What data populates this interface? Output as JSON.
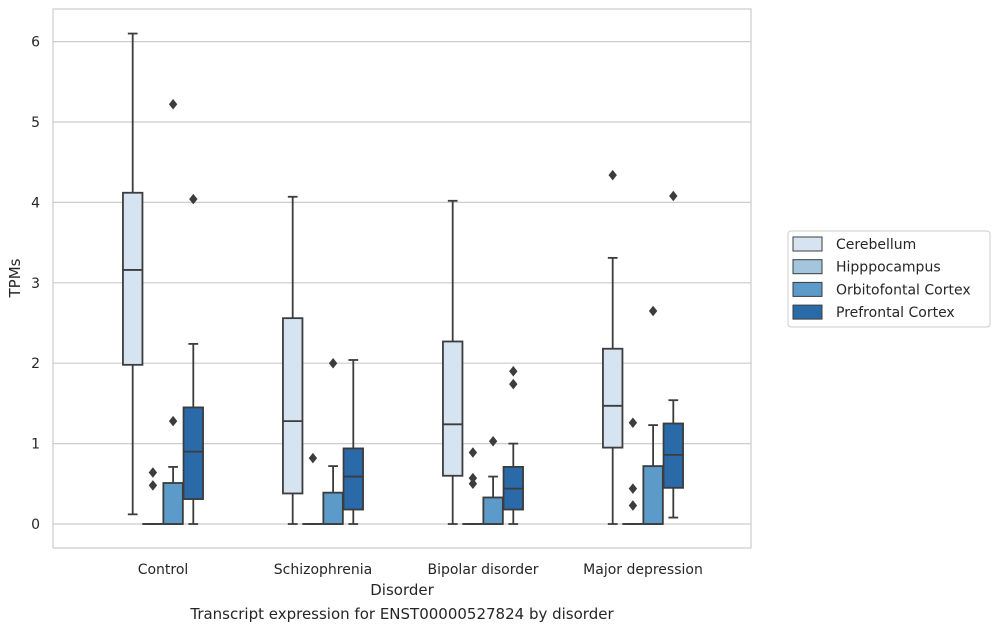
{
  "chart_data": {
    "type": "box",
    "xlabel": "Disorder",
    "ylabel": "TPMs",
    "caption": "Transcript expression for ENST00000527824 by disorder",
    "ylim": [
      -0.3,
      6.4
    ],
    "yticks": [
      0,
      1,
      2,
      3,
      4,
      5,
      6
    ],
    "grid": "horizontal",
    "legend_position": "right",
    "categories": [
      "Control",
      "Schizophrenia",
      "Bipolar disorder",
      "Major depression"
    ],
    "series": [
      {
        "name": "Cerebellum",
        "color": "#d6e4f2",
        "boxes": [
          {
            "whislo": 0.12,
            "q1": 1.98,
            "med": 3.16,
            "q3": 4.12,
            "whishi": 6.1,
            "fliers": []
          },
          {
            "whislo": 0.0,
            "q1": 0.38,
            "med": 1.28,
            "q3": 2.56,
            "whishi": 4.07,
            "fliers": []
          },
          {
            "whislo": 0.0,
            "q1": 0.6,
            "med": 1.24,
            "q3": 2.27,
            "whishi": 4.02,
            "fliers": []
          },
          {
            "whislo": 0.0,
            "q1": 0.95,
            "med": 1.47,
            "q3": 2.18,
            "whishi": 3.31,
            "fliers": [
              4.34
            ]
          }
        ]
      },
      {
        "name": "Hipppocampus",
        "color": "#a3c6de",
        "boxes": [
          {
            "whislo": 0.0,
            "q1": 0.0,
            "med": 0.0,
            "q3": 0.0,
            "whishi": 0.0,
            "fliers": [
              0.64,
              0.48
            ]
          },
          {
            "whislo": 0.0,
            "q1": 0.0,
            "med": 0.0,
            "q3": 0.0,
            "whishi": 0.0,
            "fliers": [
              0.82
            ]
          },
          {
            "whislo": 0.0,
            "q1": 0.0,
            "med": 0.0,
            "q3": 0.0,
            "whishi": 0.0,
            "fliers": [
              0.89,
              0.57,
              0.5
            ]
          },
          {
            "whislo": 0.0,
            "q1": 0.0,
            "med": 0.0,
            "q3": 0.0,
            "whishi": 0.0,
            "fliers": [
              1.26,
              0.44,
              0.23
            ]
          }
        ]
      },
      {
        "name": "Orbitofontal Cortex",
        "color": "#5b9ac9",
        "boxes": [
          {
            "whislo": 0.0,
            "q1": 0.0,
            "med": 0.0,
            "q3": 0.51,
            "whishi": 0.71,
            "fliers": [
              5.22,
              1.28
            ]
          },
          {
            "whislo": 0.0,
            "q1": 0.0,
            "med": 0.0,
            "q3": 0.39,
            "whishi": 0.72,
            "fliers": [
              2.0
            ]
          },
          {
            "whislo": 0.0,
            "q1": 0.0,
            "med": 0.0,
            "q3": 0.33,
            "whishi": 0.59,
            "fliers": [
              1.03
            ]
          },
          {
            "whislo": 0.0,
            "q1": 0.0,
            "med": 0.0,
            "q3": 0.72,
            "whishi": 1.23,
            "fliers": [
              2.65
            ]
          }
        ]
      },
      {
        "name": "Prefrontal Cortex",
        "color": "#2a6aa9",
        "boxes": [
          {
            "whislo": 0.0,
            "q1": 0.31,
            "med": 0.9,
            "q3": 1.45,
            "whishi": 2.24,
            "fliers": [
              4.04
            ]
          },
          {
            "whislo": 0.0,
            "q1": 0.18,
            "med": 0.59,
            "q3": 0.94,
            "whishi": 2.04,
            "fliers": []
          },
          {
            "whislo": 0.0,
            "q1": 0.18,
            "med": 0.44,
            "q3": 0.71,
            "whishi": 1.0,
            "fliers": [
              1.9,
              1.74
            ]
          },
          {
            "whislo": 0.08,
            "q1": 0.45,
            "med": 0.86,
            "q3": 1.25,
            "whishi": 1.54,
            "fliers": [
              4.08
            ]
          }
        ]
      }
    ]
  }
}
